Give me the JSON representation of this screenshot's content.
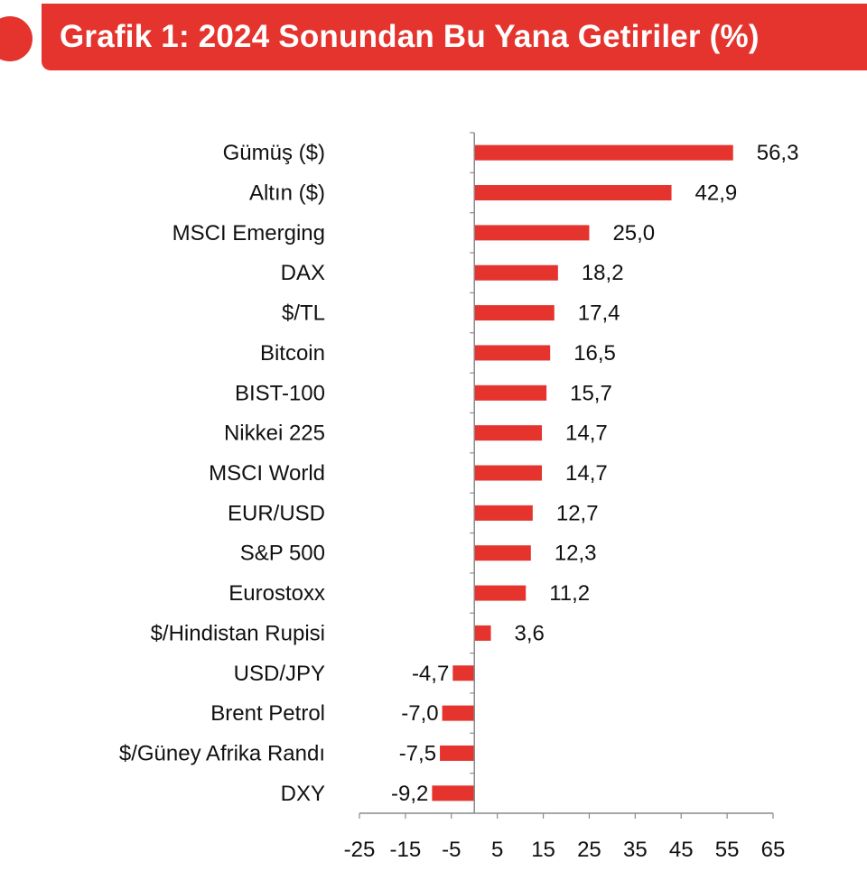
{
  "chart_data": {
    "type": "bar",
    "orientation": "horizontal",
    "title": "Grafik 1: 2024 Sonundan Bu Yana Getiriler (%)",
    "categories": [
      "Gümüş ($)",
      "Altın ($)",
      "MSCI Emerging",
      "DAX",
      "$/TL",
      "Bitcoin",
      "BIST-100",
      "Nikkei 225",
      "MSCI World",
      "EUR/USD",
      "S&P 500",
      "Eurostoxx",
      "$/Hindistan Rupisi",
      "USD/JPY",
      "Brent Petrol",
      "$/Güney Afrika Randı",
      "DXY"
    ],
    "values": [
      56.3,
      42.9,
      25.0,
      18.2,
      17.4,
      16.5,
      15.7,
      14.7,
      14.7,
      12.7,
      12.3,
      11.2,
      3.6,
      -4.7,
      -7.0,
      -7.5,
      -9.2
    ],
    "value_labels": [
      "56,3",
      "42,9",
      "25,0",
      "18,2",
      "17,4",
      "16,5",
      "15,7",
      "14,7",
      "14,7",
      "12,7",
      "12,3",
      "11,2",
      "3,6",
      "-4,7",
      "-7,0",
      "-7,5",
      "-9,2"
    ],
    "x_ticks": [
      -25,
      -15,
      -5,
      5,
      15,
      25,
      35,
      45,
      55,
      65
    ],
    "x_tick_labels": [
      "-25",
      "-15",
      "-5",
      "5",
      "15",
      "25",
      "35",
      "45",
      "55",
      "65"
    ],
    "xlim": [
      -25,
      65
    ],
    "bar_color": "#e5342e",
    "grid": false,
    "legend": "none"
  }
}
